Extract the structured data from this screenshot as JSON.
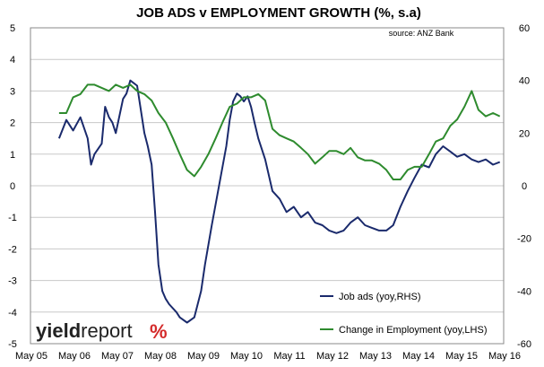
{
  "chart_data": {
    "type": "line",
    "title": "JOB ADS v EMPLOYMENT GROWTH (%, s.a)",
    "source_note": "source: ANZ Bank",
    "x_tick_labels": [
      "May 05",
      "May 06",
      "May 07",
      "May 08",
      "May 09",
      "May 10",
      "May 11",
      "May 12",
      "May 13",
      "May 14",
      "May 15",
      "May 16"
    ],
    "x_range": [
      2005.33,
      2016.42
    ],
    "y_left_range": [
      -5,
      5
    ],
    "y_left_ticks": [
      "5",
      "4",
      "3",
      "2",
      "1",
      "0",
      "-1",
      "-2",
      "-3",
      "-4",
      "-5"
    ],
    "y_right_range": [
      -60,
      60
    ],
    "y_right_ticks": [
      "60",
      "40",
      "20",
      "0",
      "-20",
      "-40",
      "-60"
    ],
    "grid": "horizontal",
    "legend_position": "bottom-right",
    "series": [
      {
        "name": "Job ads (yoy,RHS)",
        "axis": "right",
        "color": "#1a2a6c",
        "x": [
          2006.0,
          2006.17,
          2006.33,
          2006.5,
          2006.67,
          2006.75,
          2006.83,
          2007.0,
          2007.08,
          2007.17,
          2007.25,
          2007.33,
          2007.5,
          2007.58,
          2007.67,
          2007.83,
          2008.0,
          2008.08,
          2008.17,
          2008.25,
          2008.33,
          2008.42,
          2008.5,
          2008.58,
          2008.75,
          2008.83,
          2009.0,
          2009.17,
          2009.33,
          2009.42,
          2009.58,
          2009.75,
          2009.92,
          2010.0,
          2010.08,
          2010.17,
          2010.25,
          2010.33,
          2010.42,
          2010.5,
          2010.58,
          2010.67,
          2010.83,
          2011.0,
          2011.17,
          2011.33,
          2011.5,
          2011.67,
          2011.83,
          2012.0,
          2012.17,
          2012.33,
          2012.5,
          2012.67,
          2012.83,
          2013.0,
          2013.17,
          2013.33,
          2013.5,
          2013.67,
          2013.83,
          2014.0,
          2014.17,
          2014.33,
          2014.5,
          2014.67,
          2014.83,
          2015.0,
          2015.17,
          2015.33,
          2015.5,
          2015.67,
          2015.83,
          2016.0,
          2016.17,
          2016.33
        ],
        "y": [
          18,
          25,
          21,
          26,
          18,
          8,
          12,
          16,
          30,
          26,
          24,
          20,
          33,
          35,
          40,
          38,
          20,
          15,
          8,
          -10,
          -30,
          -40,
          -43,
          -45,
          -48,
          -50,
          -52,
          -50,
          -40,
          -30,
          -15,
          0,
          15,
          25,
          32,
          35,
          34,
          32,
          34,
          30,
          24,
          18,
          10,
          -2,
          -5,
          -10,
          -8,
          -12,
          -10,
          -14,
          -15,
          -17,
          -18,
          -17,
          -14,
          -12,
          -15,
          -16,
          -17,
          -17,
          -15,
          -8,
          -2,
          3,
          8,
          7,
          12,
          15,
          13,
          11,
          12,
          10,
          9,
          10,
          8,
          9
        ]
      },
      {
        "name": "Change in Employment (yoy,LHS)",
        "axis": "left",
        "color": "#2e8b2e",
        "x": [
          2006.0,
          2006.17,
          2006.33,
          2006.5,
          2006.67,
          2006.83,
          2007.0,
          2007.17,
          2007.33,
          2007.5,
          2007.67,
          2007.83,
          2008.0,
          2008.17,
          2008.33,
          2008.5,
          2008.67,
          2008.83,
          2009.0,
          2009.17,
          2009.33,
          2009.5,
          2009.67,
          2009.83,
          2010.0,
          2010.17,
          2010.33,
          2010.5,
          2010.67,
          2010.83,
          2011.0,
          2011.17,
          2011.33,
          2011.5,
          2011.67,
          2011.83,
          2012.0,
          2012.17,
          2012.33,
          2012.5,
          2012.67,
          2012.83,
          2013.0,
          2013.17,
          2013.33,
          2013.5,
          2013.67,
          2013.83,
          2014.0,
          2014.17,
          2014.33,
          2014.5,
          2014.67,
          2014.83,
          2015.0,
          2015.17,
          2015.33,
          2015.5,
          2015.67,
          2015.83,
          2016.0,
          2016.17,
          2016.33
        ],
        "y": [
          2.3,
          2.3,
          2.8,
          2.9,
          3.2,
          3.2,
          3.1,
          3.0,
          3.2,
          3.1,
          3.2,
          3.0,
          2.9,
          2.7,
          2.3,
          2.0,
          1.5,
          1.0,
          0.5,
          0.3,
          0.6,
          1.0,
          1.5,
          2.0,
          2.5,
          2.6,
          2.8,
          2.8,
          2.9,
          2.7,
          1.8,
          1.6,
          1.5,
          1.4,
          1.2,
          1.0,
          0.7,
          0.9,
          1.1,
          1.1,
          1.0,
          1.2,
          0.9,
          0.8,
          0.8,
          0.7,
          0.5,
          0.2,
          0.2,
          0.5,
          0.6,
          0.6,
          1.0,
          1.4,
          1.5,
          1.9,
          2.1,
          2.5,
          3.0,
          2.4,
          2.2,
          2.3,
          2.2
        ]
      }
    ]
  }
}
